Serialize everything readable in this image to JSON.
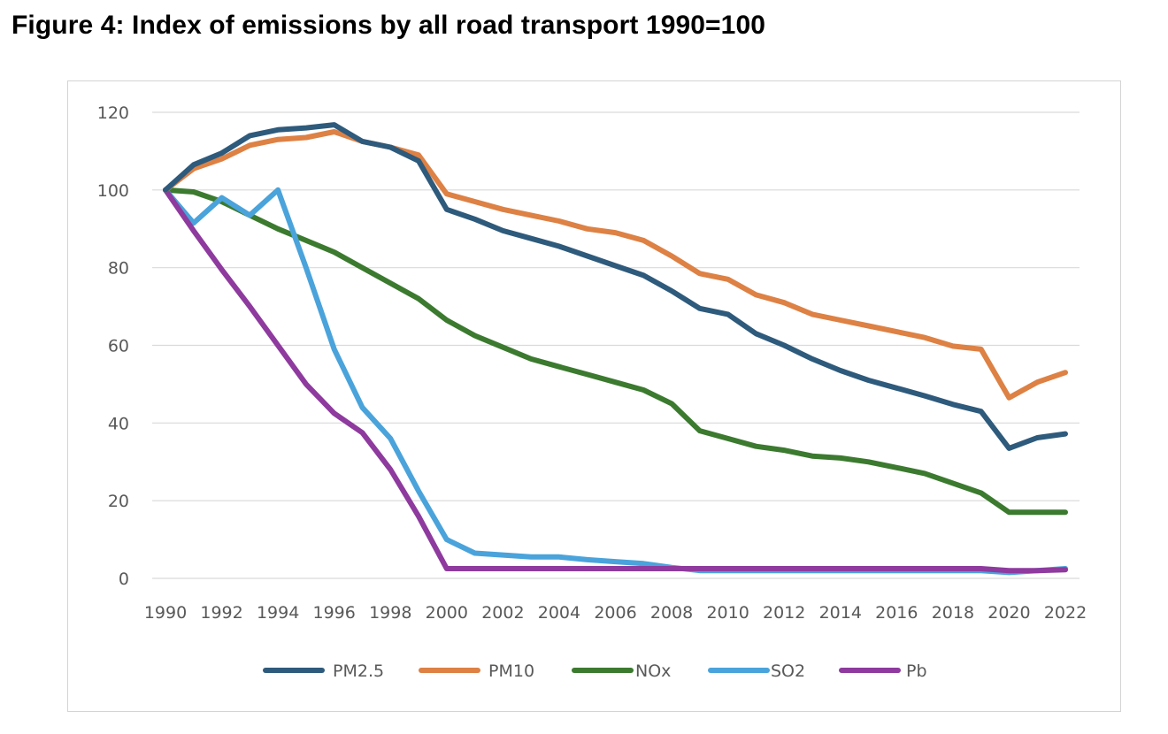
{
  "figure_title": "Figure 4: Index of emissions by all road transport 1990=100",
  "chart_data": {
    "type": "line",
    "title": "",
    "xlabel": "",
    "ylabel": "",
    "ylim": [
      0,
      120
    ],
    "yticks": [
      "0",
      "20",
      "40",
      "60",
      "80",
      "100",
      "120"
    ],
    "x": [
      1990,
      1991,
      1992,
      1993,
      1994,
      1995,
      1996,
      1997,
      1998,
      1999,
      2000,
      2001,
      2002,
      2003,
      2004,
      2005,
      2006,
      2007,
      2008,
      2009,
      2010,
      2011,
      2012,
      2013,
      2014,
      2015,
      2016,
      2017,
      2018,
      2019,
      2020,
      2021,
      2022
    ],
    "xtick_labels": [
      "1990",
      "1992",
      "1994",
      "1996",
      "1998",
      "2000",
      "2002",
      "2004",
      "2006",
      "2008",
      "2010",
      "2012",
      "2014",
      "2016",
      "2018",
      "2020",
      "2022"
    ],
    "legend_position": "bottom",
    "series": [
      {
        "name": "PM2.5",
        "color": "#2e5a7c",
        "values": [
          100,
          106.5,
          109.5,
          114,
          115.5,
          116,
          116.8,
          112.5,
          111,
          107.5,
          95,
          92.5,
          89.5,
          87.5,
          85.5,
          83,
          80.5,
          78,
          74,
          69.5,
          68,
          63,
          60,
          56.5,
          53.5,
          51,
          49,
          47,
          44.8,
          43,
          33.5,
          36.2,
          37.2
        ]
      },
      {
        "name": "PM10",
        "color": "#dd8144",
        "values": [
          100,
          105.5,
          108,
          111.5,
          113,
          113.5,
          115,
          112.5,
          111,
          109,
          99,
          97,
          95,
          93.5,
          92,
          90,
          89,
          87,
          83,
          78.5,
          77,
          73,
          71,
          68,
          66.5,
          65,
          63.5,
          62,
          59.8,
          59,
          46.5,
          50.5,
          53
        ]
      },
      {
        "name": "NOx",
        "color": "#3b7a2f",
        "values": [
          100,
          99.5,
          97,
          93.5,
          90,
          87,
          84,
          80,
          76,
          72,
          66.5,
          62.5,
          59.5,
          56.5,
          54.5,
          52.5,
          50.5,
          48.5,
          45,
          38,
          36,
          34,
          33,
          31.5,
          31,
          30,
          28.5,
          27,
          24.5,
          22,
          17,
          17,
          17
        ]
      },
      {
        "name": "SO2",
        "color": "#4aa3db",
        "values": [
          100,
          91.5,
          98,
          93.5,
          100,
          80,
          59,
          44,
          36,
          22.5,
          10,
          6.5,
          6,
          5.5,
          5.5,
          4.8,
          4.3,
          3.8,
          2.8,
          2,
          2,
          2,
          2,
          2,
          2,
          2,
          2,
          2,
          2,
          2,
          1.5,
          2,
          2.5
        ]
      },
      {
        "name": "Pb",
        "color": "#8e3a9e",
        "values": [
          100,
          89.5,
          79.5,
          70,
          60,
          50,
          42.5,
          37.5,
          28,
          16,
          2.5,
          2.5,
          2.5,
          2.5,
          2.5,
          2.5,
          2.5,
          2.5,
          2.5,
          2.5,
          2.5,
          2.5,
          2.5,
          2.5,
          2.5,
          2.5,
          2.5,
          2.5,
          2.5,
          2.5,
          2,
          2,
          2.2
        ]
      }
    ]
  }
}
